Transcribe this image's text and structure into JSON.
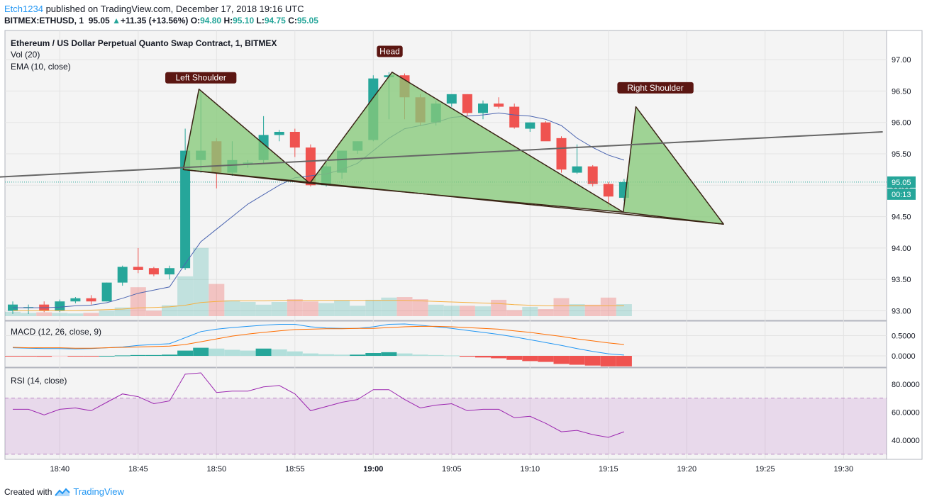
{
  "header": {
    "author": "Etch1234",
    "published_text": "published on TradingView.com, December 17, 2018 19:16 UTC",
    "symbol": "BITMEX:ETHUSD, 1",
    "last": "95.05",
    "change": "+11.35 (+13.56%)",
    "o_label": "O:",
    "o": "94.80",
    "h_label": "H:",
    "h": "95.10",
    "l_label": "L:",
    "l": "94.75",
    "c_label": "C:",
    "c": "95.05",
    "up_arrow": "▲"
  },
  "footer": {
    "created_with": "Created with",
    "brand": "TradingView"
  },
  "colors": {
    "up": "#26a69a",
    "down": "#ef5350",
    "ema": "#4a64b0",
    "vol_ma": "#f5b041",
    "macd": "#2196f3",
    "signal": "#ff6d00",
    "rsi": "#9c27b0",
    "pattern_fill": "#86c97a",
    "pattern_line": "#3a2415",
    "trend": "#666666",
    "label_bg": "#5b1612"
  },
  "chart_data": {
    "type": "candlestick",
    "title": "Ethereum / US Dollar Perpetual Quanto Swap Contract, 1, BITMEX",
    "indicator_labels": {
      "vol": "Vol (20)",
      "ema": "EMA (10, close)",
      "macd": "MACD (12, 26, close, 9)",
      "rsi": "RSI (14, close)"
    },
    "price_axis": {
      "min": 92.9,
      "max": 97.2,
      "ticks": [
        "97.00",
        "96.50",
        "96.00",
        "95.50",
        "95.00",
        "94.50",
        "94.00",
        "93.50",
        "93.00"
      ]
    },
    "macd_axis": {
      "ticks": [
        "0.5000",
        "0.0000"
      ]
    },
    "rsi_axis": {
      "ticks": [
        "80.0000",
        "60.0000",
        "40.0000"
      ],
      "band": [
        30,
        70
      ]
    },
    "last_price_label": "95.05",
    "countdown": "00:13",
    "time_axis": {
      "start": "18:37",
      "labels": [
        "18:40",
        "18:45",
        "18:50",
        "18:55",
        "19:00",
        "19:05",
        "19:10",
        "19:15",
        "19:20",
        "19:25",
        "19:30"
      ],
      "bold": "19:00"
    },
    "candles": [
      {
        "t": "18:37",
        "o": 93.0,
        "h": 93.15,
        "l": 92.95,
        "c": 93.1
      },
      {
        "t": "18:38",
        "o": 93.05,
        "h": 93.1,
        "l": 92.95,
        "c": 93.06
      },
      {
        "t": "18:39",
        "o": 93.1,
        "h": 93.15,
        "l": 92.98,
        "c": 93.0
      },
      {
        "t": "18:40",
        "o": 93.0,
        "h": 93.18,
        "l": 92.98,
        "c": 93.15
      },
      {
        "t": "18:41",
        "o": 93.15,
        "h": 93.22,
        "l": 93.12,
        "c": 93.2
      },
      {
        "t": "18:42",
        "o": 93.2,
        "h": 93.25,
        "l": 93.1,
        "c": 93.15
      },
      {
        "t": "18:43",
        "o": 93.15,
        "h": 93.45,
        "l": 93.15,
        "c": 93.45
      },
      {
        "t": "18:44",
        "o": 93.45,
        "h": 93.72,
        "l": 93.4,
        "c": 93.7
      },
      {
        "t": "18:45",
        "o": 93.7,
        "h": 94.0,
        "l": 93.6,
        "c": 93.65
      },
      {
        "t": "18:46",
        "o": 93.68,
        "h": 93.7,
        "l": 93.55,
        "c": 93.58
      },
      {
        "t": "18:47",
        "o": 93.58,
        "h": 93.72,
        "l": 93.5,
        "c": 93.68
      },
      {
        "t": "18:48",
        "o": 93.68,
        "h": 95.9,
        "l": 93.65,
        "c": 95.55
      },
      {
        "t": "18:49",
        "o": 95.4,
        "h": 96.5,
        "l": 95.2,
        "c": 95.55
      },
      {
        "t": "18:50",
        "o": 95.7,
        "h": 95.75,
        "l": 94.95,
        "c": 95.2
      },
      {
        "t": "18:51",
        "o": 95.2,
        "h": 95.7,
        "l": 95.15,
        "c": 95.4
      },
      {
        "t": "18:52",
        "o": 95.36,
        "h": 95.4,
        "l": 95.28,
        "c": 95.36
      },
      {
        "t": "18:53",
        "o": 95.4,
        "h": 96.1,
        "l": 95.35,
        "c": 95.8
      },
      {
        "t": "18:54",
        "o": 95.8,
        "h": 95.88,
        "l": 95.7,
        "c": 95.85
      },
      {
        "t": "18:55",
        "o": 95.85,
        "h": 95.9,
        "l": 95.45,
        "c": 95.6
      },
      {
        "t": "18:56",
        "o": 95.6,
        "h": 95.65,
        "l": 94.98,
        "c": 95.0
      },
      {
        "t": "18:57",
        "o": 95.0,
        "h": 95.35,
        "l": 94.98,
        "c": 95.3
      },
      {
        "t": "18:58",
        "o": 95.2,
        "h": 95.55,
        "l": 95.1,
        "c": 95.55
      },
      {
        "t": "18:59",
        "o": 95.55,
        "h": 95.7,
        "l": 95.5,
        "c": 95.7
      },
      {
        "t": "19:00",
        "o": 95.72,
        "h": 96.75,
        "l": 95.7,
        "c": 96.7
      },
      {
        "t": "19:01",
        "o": 96.72,
        "h": 96.8,
        "l": 96.05,
        "c": 96.75
      },
      {
        "t": "19:02",
        "o": 96.75,
        "h": 96.78,
        "l": 96.05,
        "c": 96.4
      },
      {
        "t": "19:03",
        "o": 96.4,
        "h": 96.45,
        "l": 95.95,
        "c": 96.0
      },
      {
        "t": "19:04",
        "o": 96.0,
        "h": 96.35,
        "l": 95.95,
        "c": 96.3
      },
      {
        "t": "19:05",
        "o": 96.3,
        "h": 96.45,
        "l": 96.25,
        "c": 96.45
      },
      {
        "t": "19:06",
        "o": 96.45,
        "h": 96.45,
        "l": 96.1,
        "c": 96.15
      },
      {
        "t": "19:07",
        "o": 96.15,
        "h": 96.35,
        "l": 96.05,
        "c": 96.3
      },
      {
        "t": "19:08",
        "o": 96.3,
        "h": 96.4,
        "l": 96.22,
        "c": 96.25
      },
      {
        "t": "19:09",
        "o": 96.25,
        "h": 96.3,
        "l": 95.9,
        "c": 95.92
      },
      {
        "t": "19:10",
        "o": 95.9,
        "h": 96.0,
        "l": 95.85,
        "c": 96.0
      },
      {
        "t": "19:11",
        "o": 96.0,
        "h": 96.02,
        "l": 95.72,
        "c": 95.7
      },
      {
        "t": "19:12",
        "o": 95.75,
        "h": 95.78,
        "l": 95.2,
        "c": 95.25
      },
      {
        "t": "19:13",
        "o": 95.2,
        "h": 95.65,
        "l": 95.18,
        "c": 95.3
      },
      {
        "t": "19:14",
        "o": 95.3,
        "h": 95.32,
        "l": 94.98,
        "c": 95.02
      },
      {
        "t": "19:15",
        "o": 95.02,
        "h": 95.05,
        "l": 94.65,
        "c": 94.82
      },
      {
        "t": "19:16",
        "o": 94.8,
        "h": 95.1,
        "l": 94.75,
        "c": 95.05
      }
    ],
    "ema": [
      93.05,
      93.05,
      93.05,
      93.06,
      93.08,
      93.09,
      93.13,
      93.2,
      93.28,
      93.33,
      93.38,
      93.75,
      94.1,
      94.3,
      94.5,
      94.7,
      94.85,
      95.0,
      95.12,
      95.15,
      95.18,
      95.25,
      95.35,
      95.55,
      95.75,
      95.9,
      95.95,
      96.0,
      96.08,
      96.1,
      96.12,
      96.15,
      96.12,
      96.1,
      96.05,
      95.95,
      95.75,
      95.6,
      95.48,
      95.4
    ],
    "volume": [
      8,
      6,
      7,
      6,
      5,
      6,
      10,
      16,
      53,
      10,
      20,
      73,
      125,
      59,
      29,
      26,
      21,
      26,
      31,
      27,
      24,
      29,
      19,
      30,
      34,
      35,
      31,
      21,
      19,
      19,
      18,
      30,
      11,
      17,
      13,
      33,
      22,
      21,
      34,
      22
    ],
    "volume_ma": [
      10,
      10,
      10,
      10,
      10,
      11,
      12,
      13,
      15,
      16,
      17,
      20,
      25,
      27,
      28,
      28,
      28,
      29,
      29,
      29,
      29,
      29,
      29,
      29,
      29,
      29,
      28,
      27,
      26,
      25,
      24,
      23,
      21,
      20,
      19,
      19,
      19,
      19,
      19,
      19
    ],
    "macd_hist": [
      -0.01,
      -0.01,
      -0.02,
      -0.01,
      -0.01,
      -0.01,
      0.0,
      0.01,
      0.02,
      0.02,
      0.03,
      0.13,
      0.2,
      0.18,
      0.15,
      0.13,
      0.18,
      0.16,
      0.11,
      0.06,
      0.04,
      0.03,
      0.03,
      0.07,
      0.09,
      0.06,
      0.03,
      0.02,
      0.01,
      -0.02,
      -0.04,
      -0.06,
      -0.1,
      -0.13,
      -0.15,
      -0.2,
      -0.22,
      -0.24,
      -0.26,
      -0.26
    ],
    "macd_line": [
      0.2,
      0.19,
      0.18,
      0.18,
      0.17,
      0.18,
      0.2,
      0.22,
      0.26,
      0.28,
      0.3,
      0.45,
      0.6,
      0.66,
      0.7,
      0.73,
      0.76,
      0.78,
      0.78,
      0.72,
      0.69,
      0.68,
      0.68,
      0.72,
      0.78,
      0.79,
      0.76,
      0.72,
      0.68,
      0.63,
      0.58,
      0.53,
      0.47,
      0.4,
      0.33,
      0.26,
      0.18,
      0.11,
      0.05,
      0.02
    ],
    "signal_line": [
      0.21,
      0.2,
      0.2,
      0.2,
      0.19,
      0.19,
      0.2,
      0.21,
      0.22,
      0.23,
      0.24,
      0.28,
      0.35,
      0.42,
      0.49,
      0.54,
      0.58,
      0.62,
      0.65,
      0.66,
      0.67,
      0.67,
      0.68,
      0.68,
      0.7,
      0.72,
      0.73,
      0.73,
      0.72,
      0.7,
      0.68,
      0.66,
      0.62,
      0.58,
      0.53,
      0.48,
      0.42,
      0.37,
      0.32,
      0.28
    ],
    "rsi": [
      62,
      62,
      58,
      62,
      63,
      61,
      67,
      73,
      71,
      66,
      68,
      87,
      88,
      74,
      75,
      75,
      78,
      79,
      73,
      61,
      64,
      67,
      69,
      76,
      76,
      69,
      63,
      65,
      66,
      61,
      62,
      62,
      56,
      57,
      52,
      46,
      47,
      44,
      42,
      46
    ],
    "pattern": {
      "left_shoulder_label": "Left Shoulder",
      "head_label": "Head",
      "right_shoulder_label": "Right Shoulder",
      "left_shoulder": [
        {
          "t": 47.88,
          "p": 95.25
        },
        {
          "t": 48.88,
          "p": 96.53
        },
        {
          "t": 55.95,
          "p": 95.03
        }
      ],
      "head": [
        {
          "t": 55.95,
          "p": 95.03
        },
        {
          "t": 61.2,
          "p": 96.8
        },
        {
          "t": 75.95,
          "p": 94.57
        }
      ],
      "right_shoulder": [
        {
          "t": 75.95,
          "p": 94.57
        },
        {
          "t": 76.75,
          "p": 96.25
        },
        {
          "t": 82.35,
          "p": 94.38
        }
      ],
      "neckline": [
        {
          "t": 47.88,
          "p": 95.25
        },
        {
          "t": 82.35,
          "p": 94.38
        }
      ],
      "trendline": [
        {
          "t": 36.0,
          "p": 95.13
        },
        {
          "t": 92.5,
          "p": 95.85
        }
      ]
    }
  }
}
